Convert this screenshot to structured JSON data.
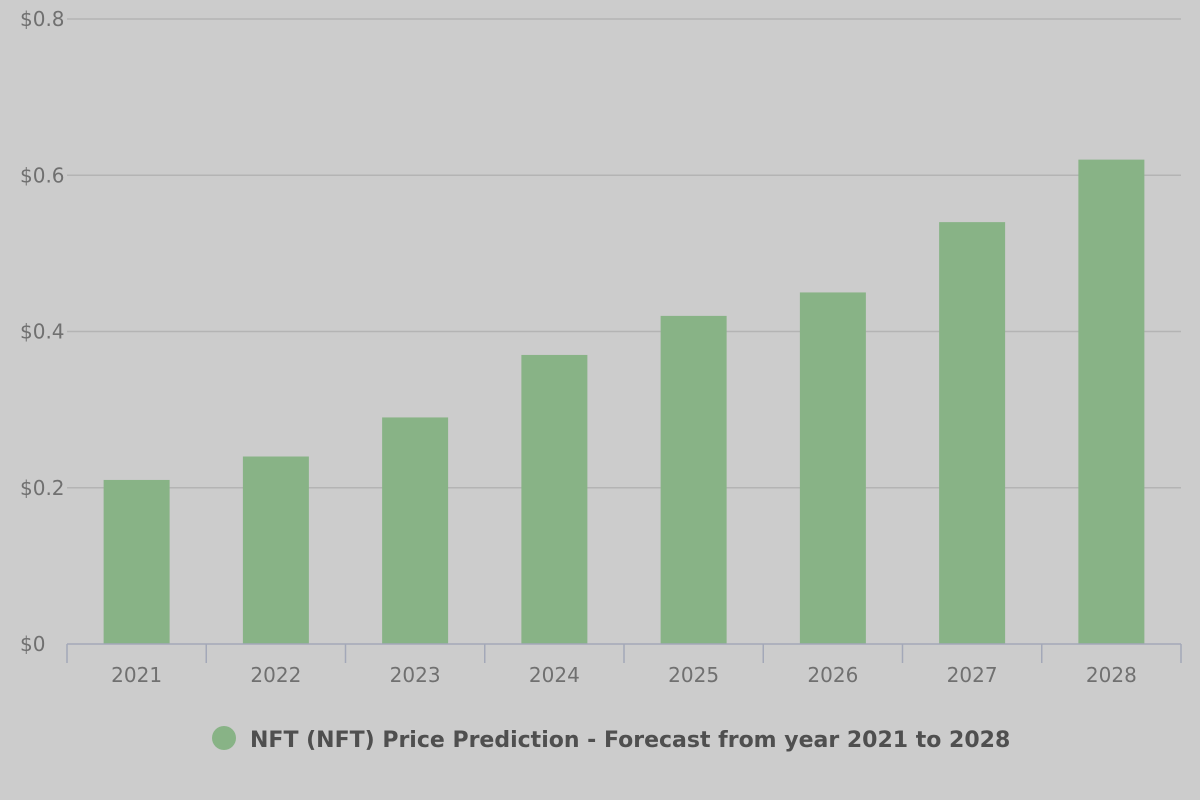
{
  "chart_data": {
    "type": "bar",
    "title": "",
    "xlabel": "",
    "ylabel": "",
    "categories": [
      "2021",
      "2022",
      "2023",
      "2024",
      "2025",
      "2026",
      "2027",
      "2028"
    ],
    "series": [
      {
        "name": "NFT (NFT) Price Prediction - Forecast from year 2021 to 2028",
        "values": [
          0.21,
          0.24,
          0.29,
          0.37,
          0.42,
          0.45,
          0.54,
          0.62
        ],
        "color": "#88b386"
      }
    ],
    "ylim": [
      0,
      0.8
    ],
    "yticks": [
      0,
      0.2,
      0.4,
      0.6,
      0.8
    ],
    "ytick_labels": [
      "$0",
      "$0.2",
      "$0.4",
      "$0.6",
      "$0.8"
    ],
    "grid": true,
    "legend_position": "bottom-center"
  },
  "colors": {
    "background": "#cccccc",
    "gridline": "#b4b4b4",
    "axis": "#a3a8b8",
    "tick_text": "#707070",
    "legend_text": "#4f4f4f"
  }
}
